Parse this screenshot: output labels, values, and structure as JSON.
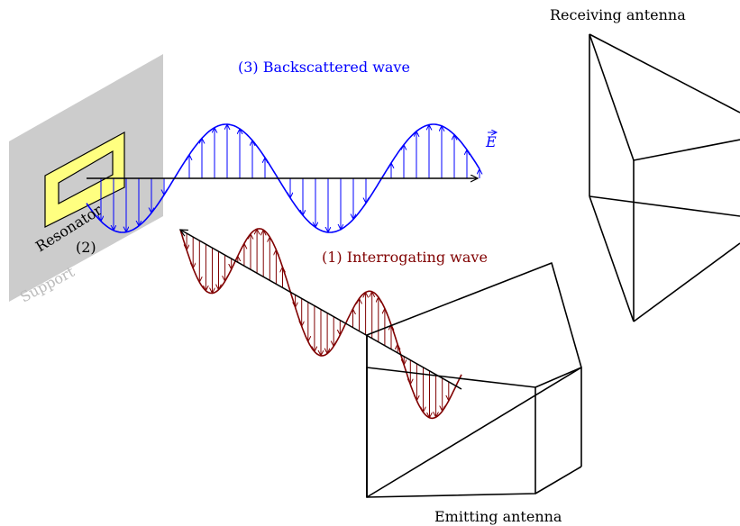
{
  "labels": {
    "receiving_antenna": "Receiving antenna",
    "emitting_antenna": "Emitting antenna",
    "backscattered_wave": "(3) Backscattered wave",
    "interrogating_wave": "(1) Interrogating wave",
    "resonator": "Resonator",
    "resonator_number": "(2)",
    "support": "Support",
    "field_symbol": "E"
  },
  "colors": {
    "backscattered": "#0000ff",
    "interrogating": "#800000",
    "support": "#cccccc",
    "support_text": "#bbbbbb",
    "resonator_fill": "#ffff80",
    "resonator_stroke": "#000000",
    "antenna": "#000000"
  }
}
